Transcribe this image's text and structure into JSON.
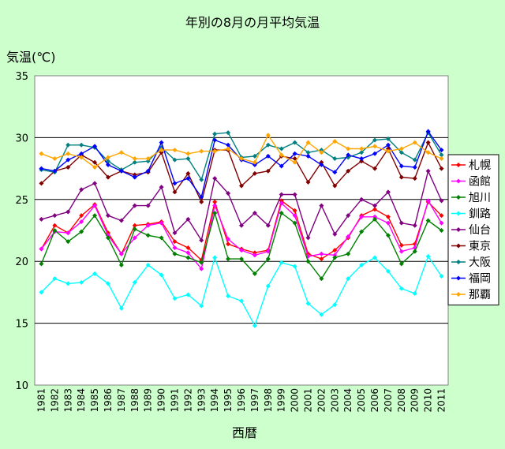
{
  "chart_data": {
    "type": "line",
    "title": "年別の8月の月平均気温",
    "ylabel": "気温(℃)",
    "xlabel": "西暦",
    "ylim": [
      10,
      35
    ],
    "yticks": [
      "10",
      "15",
      "20",
      "25",
      "30",
      "35"
    ],
    "grid": "horizontal",
    "legend_position": "right",
    "x": [
      "1981",
      "1982",
      "1983",
      "1984",
      "1985",
      "1986",
      "1987",
      "1988",
      "1989",
      "1990",
      "1991",
      "1992",
      "1993",
      "1994",
      "1995",
      "1996",
      "1997",
      "1998",
      "1999",
      "2000",
      "2001",
      "2002",
      "2003",
      "2004",
      "2005",
      "2006",
      "2007",
      "2008",
      "2009",
      "2010",
      "2011"
    ],
    "series": [
      {
        "name": "札幌",
        "color": "#ff0000",
        "marker": "diamond",
        "values": [
          21.0,
          22.9,
          22.3,
          23.7,
          24.6,
          22.3,
          20.6,
          22.9,
          23.0,
          23.2,
          21.6,
          21.1,
          20.1,
          24.8,
          21.4,
          21.0,
          20.7,
          20.9,
          24.9,
          24.1,
          20.6,
          20.2,
          20.9,
          21.9,
          23.7,
          24.2,
          23.6,
          21.3,
          21.4,
          24.8,
          23.7
        ]
      },
      {
        "name": "函館",
        "color": "#ff00ff",
        "marker": "diamond",
        "values": [
          21.0,
          22.4,
          22.3,
          23.2,
          24.5,
          22.1,
          20.6,
          21.9,
          22.9,
          23.1,
          21.1,
          20.7,
          19.4,
          24.5,
          21.8,
          20.9,
          20.5,
          20.8,
          24.7,
          23.7,
          20.4,
          20.6,
          20.5,
          22.0,
          23.6,
          23.6,
          23.1,
          20.8,
          21.1,
          24.9,
          23.1
        ]
      },
      {
        "name": "旭川",
        "color": "#008000",
        "marker": "diamond",
        "values": [
          19.8,
          22.5,
          21.6,
          22.4,
          23.7,
          21.9,
          19.7,
          22.6,
          22.1,
          21.9,
          20.6,
          20.3,
          19.9,
          23.9,
          20.2,
          20.2,
          19.0,
          20.2,
          23.9,
          23.1,
          20.0,
          18.6,
          20.3,
          20.6,
          22.4,
          23.4,
          22.1,
          19.8,
          20.8,
          23.3,
          22.5
        ]
      },
      {
        "name": "釧路",
        "color": "#00ffff",
        "marker": "diamond",
        "values": [
          17.5,
          18.6,
          18.2,
          18.3,
          19.0,
          18.2,
          16.2,
          18.3,
          19.7,
          18.9,
          17.0,
          17.3,
          16.4,
          20.3,
          17.2,
          16.8,
          14.8,
          18.0,
          19.9,
          19.6,
          16.6,
          15.7,
          16.5,
          18.6,
          19.7,
          20.3,
          19.2,
          17.8,
          17.4,
          20.4,
          18.8
        ]
      },
      {
        "name": "仙台",
        "color": "#800080",
        "marker": "diamond",
        "values": [
          23.4,
          23.7,
          24.0,
          25.8,
          26.3,
          23.7,
          23.3,
          24.5,
          24.5,
          26.0,
          22.3,
          23.4,
          21.7,
          26.7,
          25.5,
          22.9,
          23.9,
          22.9,
          25.4,
          25.4,
          21.9,
          24.5,
          22.2,
          23.7,
          25.0,
          24.5,
          25.6,
          23.1,
          22.9,
          27.3,
          24.9
        ]
      },
      {
        "name": "東京",
        "color": "#800000",
        "marker": "diamond",
        "values": [
          26.3,
          27.3,
          27.6,
          28.6,
          28.0,
          26.8,
          27.3,
          27.0,
          27.2,
          28.8,
          25.6,
          27.1,
          24.8,
          29.0,
          29.0,
          26.1,
          27.1,
          27.3,
          28.5,
          28.3,
          26.4,
          28.0,
          26.1,
          27.3,
          28.1,
          27.5,
          29.1,
          26.8,
          26.7,
          29.6,
          27.5
        ]
      },
      {
        "name": "大阪",
        "color": "#008080",
        "marker": "diamond",
        "values": [
          27.4,
          27.2,
          29.4,
          29.4,
          29.2,
          28.1,
          27.4,
          28.0,
          28.1,
          29.2,
          28.2,
          28.3,
          26.6,
          30.3,
          30.4,
          28.4,
          28.5,
          29.4,
          29.1,
          29.6,
          28.8,
          29.0,
          28.3,
          28.4,
          28.8,
          29.8,
          29.9,
          28.8,
          28.2,
          30.4,
          28.6
        ]
      },
      {
        "name": "福岡",
        "color": "#0000ff",
        "marker": "diamond",
        "values": [
          27.5,
          27.3,
          28.2,
          28.7,
          29.3,
          27.8,
          27.3,
          26.8,
          27.3,
          29.6,
          26.3,
          26.7,
          25.2,
          29.8,
          29.4,
          28.2,
          27.8,
          28.5,
          27.7,
          28.7,
          28.5,
          27.8,
          27.2,
          28.6,
          28.3,
          28.7,
          29.4,
          27.7,
          27.6,
          30.5,
          29.0
        ]
      },
      {
        "name": "那覇",
        "color": "#ffa500",
        "marker": "diamond",
        "values": [
          28.7,
          28.3,
          28.7,
          28.4,
          27.6,
          28.4,
          28.8,
          28.3,
          28.3,
          29.0,
          29.0,
          28.7,
          28.9,
          28.9,
          29.1,
          28.3,
          28.0,
          30.2,
          28.6,
          28.0,
          29.6,
          28.8,
          29.7,
          29.1,
          29.1,
          29.3,
          28.9,
          29.1,
          29.6,
          28.8,
          28.3
        ]
      }
    ]
  }
}
